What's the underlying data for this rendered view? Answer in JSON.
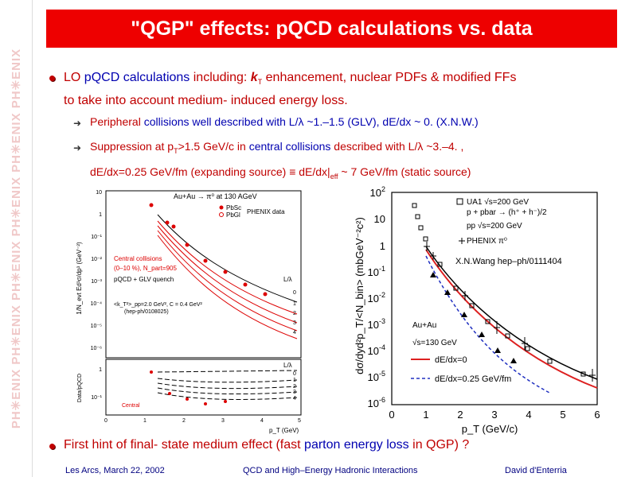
{
  "sidebar": {
    "watermark": "PH✳ENIX PH✳ENIX PH✳ENIX PH✳ENIX PH✳ENIX PH✳ENIX"
  },
  "slide": {
    "title": "\"QGP\" effects: pQCD calculations vs. data",
    "bullet1": {
      "p1": "LO ",
      "p2": "pQCD calculations",
      "p3": " including: ",
      "kt": "k",
      "kt_sub": "T",
      "p4": " enhancement, nuclear PDFs & modified FFs",
      "line2": "to take into account medium- induced energy loss."
    },
    "sub1": {
      "p1": "Peripheral",
      "p2": " collisions well described with L/λ ~1.–1.5 (GLV), dE/dx ~ 0. (X.N.W.)"
    },
    "sub2": {
      "p1": "Suppression at p",
      "p1_sub": "T",
      "p2": ">1.5 GeV/c in ",
      "p3": "central collisions",
      "p4": " described with L/λ ~3.–4. ,",
      "line2a": "dE/dx=0.25 GeV/fm (expanding source)",
      "line2b": " ≡  dE/dx|",
      "line2_sub": "eff",
      "line2c": " ~ 7 GeV/fm (static source)"
    },
    "bullet2": {
      "p1": "First hint of final- state medium effect (fast ",
      "p2": "parton energy loss",
      "p3": " in QGP) ?"
    }
  },
  "left_chart": {
    "ylabel_top": "1/N_evt Ed³σ/dp³ (GeV⁻²)",
    "ytick_top": [
      "10",
      "1",
      "10⁻¹",
      "10⁻²",
      "10⁻³",
      "10⁻⁴",
      "10⁻⁵",
      "10⁻⁶"
    ],
    "legend_top": "Au+Au   → π⁰ at 130 AGeV",
    "legend_pbsc": "PbSc",
    "legend_pbgl": "PbGl",
    "legend_data": "PHENIX data",
    "central": "Central collisions",
    "centrality": "(0–10 %), N_part=905",
    "model": "pQCD + GLV quench",
    "params": "<k_T²>_pp=2.0 GeV², C = 0.4 GeV²",
    "ref": "(hep-ph/0108025)",
    "label_L": "L/λ",
    "curve_labels_top": [
      "0",
      "1",
      "2",
      "3",
      "4"
    ],
    "ylabel_bottom": "Data/pQCD",
    "ytick_bottom": [
      "1",
      "10⁻¹"
    ],
    "label_L_bottom": "L/λ",
    "curve_labels_bottom": [
      "0",
      "1",
      "2",
      "3",
      "4"
    ],
    "central_bottom": "Central",
    "xlabel": "p_T (GeV)",
    "xticks": [
      "0",
      "1",
      "2",
      "3",
      "4",
      "5"
    ]
  },
  "right_chart": {
    "ylabel": "dσ/dyd²p_T/<N_bin> (mbGeV⁻²c²)",
    "xlabel": "p_T (GeV/c)",
    "xticks": [
      "0",
      "1",
      "2",
      "3",
      "4",
      "5",
      "6"
    ],
    "yticks": [
      {
        "base": "10",
        "exp": "2"
      },
      {
        "base": "10",
        "exp": ""
      },
      {
        "base": "1",
        "exp": ""
      },
      {
        "base": "10",
        "exp": "-1"
      },
      {
        "base": "10",
        "exp": "-2"
      },
      {
        "base": "10",
        "exp": "-3"
      },
      {
        "base": "10",
        "exp": "-4"
      },
      {
        "base": "10",
        "exp": "-5"
      },
      {
        "base": "10",
        "exp": "-6"
      }
    ],
    "legend": [
      "UA1  √s=200 GeV",
      "p + pbar → (h⁺ + h⁻)/2",
      "pp      √s=200 GeV",
      "PHENIX π⁰"
    ],
    "annotation": "X.N.Wang hep–ph/0111404",
    "aa_legend": [
      "Au+Au",
      "√s=130 GeV",
      "dE/dx=0",
      "dE/dx=0.25 GeV/fm"
    ],
    "colors": {
      "red": "#dd2020",
      "blue": "#2030c0",
      "black": "#000000"
    }
  },
  "footer": {
    "left": "Les Arcs, March 22, 2002",
    "center": "QCD and High–Energy Hadronic Interactions",
    "right": "David d'Enterria"
  }
}
